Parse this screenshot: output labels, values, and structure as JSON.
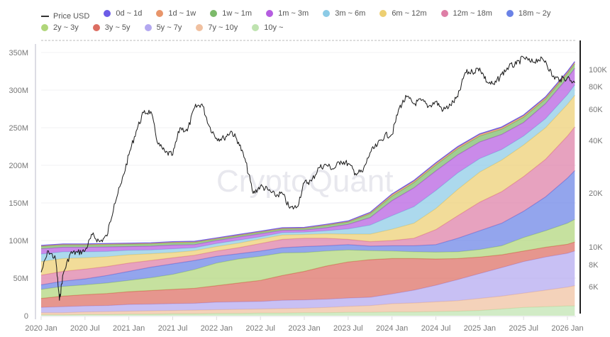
{
  "chart_data": {
    "type": "area",
    "title": "",
    "watermark": "CryptoQuant",
    "legend": [
      {
        "name": "Price USD",
        "kind": "line",
        "color": "#222222"
      },
      {
        "name": "0d ~ 1d",
        "color": "#6c5ce7"
      },
      {
        "name": "1d ~ 1w",
        "color": "#e8956a"
      },
      {
        "name": "1w ~ 1m",
        "color": "#7cba6a"
      },
      {
        "name": "1m ~ 3m",
        "color": "#b55de0"
      },
      {
        "name": "3m ~ 6m",
        "color": "#8ccbe6"
      },
      {
        "name": "6m ~ 12m",
        "color": "#edcf72"
      },
      {
        "name": "12m ~ 18m",
        "color": "#de7ea6"
      },
      {
        "name": "18m ~ 2y",
        "color": "#6a82e6"
      },
      {
        "name": "2y ~ 3y",
        "color": "#b0d67a"
      },
      {
        "name": "3y ~ 5y",
        "color": "#dc6e62"
      },
      {
        "name": "5y ~ 7y",
        "color": "#b3a8f0"
      },
      {
        "name": "7y ~ 10y",
        "color": "#f0c0a0"
      },
      {
        "name": "10y ~",
        "color": "#bfe3b0"
      }
    ],
    "x": [
      "2020-01",
      "2020-04",
      "2020-07",
      "2020-10",
      "2021-01",
      "2021-04",
      "2021-07",
      "2021-10",
      "2022-01",
      "2022-04",
      "2022-07",
      "2022-10",
      "2023-01",
      "2023-04",
      "2023-07",
      "2023-10",
      "2024-01",
      "2024-04",
      "2024-07",
      "2024-10",
      "2025-01",
      "2025-04",
      "2025-07",
      "2025-10",
      "2026-01",
      "2026-02"
    ],
    "x_ticks": [
      "2020 Jan",
      "2020 Jul",
      "2021 Jan",
      "2021 Jul",
      "2022 Jan",
      "2022 Jul",
      "2023 Jan",
      "2023 Jul",
      "2024 Jan",
      "2024 Jul",
      "2025 Jan",
      "2025 Jul",
      "2026 Jan"
    ],
    "y_left": {
      "label": "",
      "ticks": [
        "0",
        "50M",
        "100M",
        "150M",
        "200M",
        "250M",
        "300M",
        "350M"
      ],
      "range": [
        0,
        350
      ]
    },
    "y_right": {
      "label": "",
      "scale": "log",
      "ticks": [
        "6K",
        "8K",
        "10K",
        "20K",
        "40K",
        "60K",
        "80K",
        "100K"
      ]
    },
    "series_order": "bottom-to-top",
    "series": [
      {
        "name": "10y ~",
        "values": [
          1,
          1,
          1.5,
          1.5,
          2,
          2,
          2.5,
          2.5,
          3,
          3,
          3.5,
          3.5,
          4,
          4,
          4.5,
          4.5,
          5,
          5,
          5.5,
          6,
          7,
          9,
          11,
          12,
          13,
          13
        ]
      },
      {
        "name": "7y ~ 10y",
        "values": [
          3,
          3,
          3.5,
          4,
          4,
          4.5,
          4.5,
          5,
          5,
          5.5,
          5.5,
          6,
          6,
          7,
          8,
          9,
          11,
          12,
          13,
          14,
          16,
          17,
          19,
          22,
          25,
          27
        ]
      },
      {
        "name": "5y ~ 7y",
        "values": [
          7,
          8,
          8,
          8,
          9,
          9,
          9,
          9,
          10,
          10,
          10,
          11,
          11,
          11,
          11,
          11,
          13,
          17,
          22,
          28,
          33,
          38,
          42,
          44,
          45,
          46
        ]
      },
      {
        "name": "3y ~ 5y",
        "values": [
          12,
          14,
          15,
          16,
          17,
          18,
          19,
          20,
          22,
          25,
          28,
          33,
          38,
          44,
          48,
          50,
          47,
          42,
          35,
          28,
          22,
          17,
          14,
          13,
          12,
          12
        ]
      },
      {
        "name": "2y ~ 3y",
        "values": [
          12,
          13,
          13,
          14,
          15,
          17,
          20,
          25,
          30,
          32,
          32,
          30,
          25,
          20,
          16,
          12,
          10,
          9,
          9,
          9,
          10,
          12,
          18,
          22,
          28,
          30
        ]
      },
      {
        "name": "18m ~ 2y",
        "values": [
          6,
          7,
          8,
          10,
          12,
          14,
          14,
          12,
          9,
          7,
          7,
          7,
          8,
          7,
          7,
          6,
          7,
          8,
          10,
          18,
          25,
          30,
          35,
          45,
          60,
          65
        ]
      },
      {
        "name": "12m ~ 18m",
        "values": [
          13,
          13,
          13,
          12,
          11,
          9,
          8,
          7,
          7,
          8,
          10,
          11,
          11,
          10,
          7,
          6,
          7,
          10,
          20,
          30,
          38,
          42,
          46,
          50,
          56,
          58
        ]
      },
      {
        "name": "6m ~ 12m",
        "values": [
          18,
          17,
          15,
          13,
          11,
          9,
          7,
          6,
          6,
          6,
          6,
          6,
          5,
          6,
          7,
          10,
          15,
          20,
          28,
          35,
          40,
          42,
          42,
          42,
          42,
          42
        ]
      },
      {
        "name": "3m ~ 6m",
        "values": [
          10,
          9,
          8,
          7,
          6,
          5,
          5,
          4,
          4,
          4,
          3,
          3,
          3,
          4,
          7,
          12,
          18,
          22,
          24,
          22,
          18,
          14,
          12,
          12,
          13,
          14
        ]
      },
      {
        "name": "1m ~ 3m",
        "values": [
          7,
          6,
          6,
          6,
          5,
          5,
          5,
          4,
          4,
          4,
          4,
          3,
          3,
          4,
          6,
          10,
          20,
          25,
          26,
          24,
          22,
          20,
          18,
          20,
          22,
          22
        ]
      },
      {
        "name": "1w ~ 1m",
        "values": [
          3,
          3,
          3,
          3,
          3,
          3,
          3,
          3,
          2,
          2,
          2,
          2,
          2,
          3,
          3,
          5,
          6,
          7,
          8,
          8,
          8,
          7,
          7,
          6,
          6,
          6
        ]
      },
      {
        "name": "1d ~ 1w",
        "values": [
          1,
          1,
          1,
          1,
          1,
          1,
          1,
          1,
          1,
          1,
          1,
          1,
          1,
          1,
          1,
          1.5,
          2,
          2,
          2,
          2,
          2,
          2,
          2,
          2,
          2,
          2
        ]
      },
      {
        "name": "0d ~ 1d",
        "values": [
          0.5,
          0.5,
          0.5,
          0.5,
          0.5,
          0.5,
          0.5,
          0.5,
          0.5,
          0.5,
          0.5,
          0.5,
          0.5,
          0.5,
          0.5,
          0.5,
          1,
          1,
          1,
          1,
          1,
          1,
          1,
          1,
          1,
          1
        ]
      }
    ],
    "price_usd": {
      "dates": [
        "2020-01",
        "2020-02",
        "2020-03",
        "2020-03b",
        "2020-04",
        "2020-05",
        "2020-06",
        "2020-07",
        "2020-08",
        "2020-09",
        "2020-10",
        "2020-11",
        "2020-12",
        "2021-01",
        "2021-02",
        "2021-03",
        "2021-04",
        "2021-05",
        "2021-06",
        "2021-07",
        "2021-08",
        "2021-09",
        "2021-10",
        "2021-11",
        "2021-12",
        "2022-01",
        "2022-02",
        "2022-03",
        "2022-04",
        "2022-05",
        "2022-06",
        "2022-07",
        "2022-08",
        "2022-09",
        "2022-10",
        "2022-11",
        "2022-12",
        "2023-01",
        "2023-02",
        "2023-03",
        "2023-04",
        "2023-05",
        "2023-06",
        "2023-07",
        "2023-08",
        "2023-09",
        "2023-10",
        "2023-11",
        "2023-12",
        "2024-01",
        "2024-02",
        "2024-03",
        "2024-04",
        "2024-05",
        "2024-06",
        "2024-07",
        "2024-08",
        "2024-09",
        "2024-10",
        "2024-11",
        "2024-12",
        "2025-01",
        "2025-02",
        "2025-03",
        "2025-04",
        "2025-05",
        "2025-06",
        "2025-07",
        "2025-08",
        "2025-09",
        "2025-10",
        "2025-11",
        "2025-12",
        "2026-01",
        "2026-02"
      ],
      "values": [
        7200,
        9500,
        8500,
        5000,
        7000,
        9200,
        9300,
        9500,
        11700,
        10700,
        11500,
        17500,
        23000,
        33000,
        45000,
        57000,
        58000,
        38000,
        34000,
        33000,
        47000,
        45000,
        61000,
        64000,
        48000,
        41000,
        41000,
        45000,
        39000,
        30000,
        20000,
        22000,
        21000,
        19500,
        20000,
        16500,
        16800,
        23000,
        23500,
        28000,
        29000,
        27500,
        30500,
        29500,
        26000,
        26500,
        34000,
        37500,
        42500,
        43000,
        61000,
        70000,
        64000,
        67000,
        62000,
        66000,
        59000,
        63000,
        70000,
        96000,
        97000,
        102000,
        85000,
        82000,
        94000,
        104000,
        107000,
        117000,
        110000,
        114000,
        112000,
        91000,
        88000,
        90000,
        84000
      ]
    }
  }
}
